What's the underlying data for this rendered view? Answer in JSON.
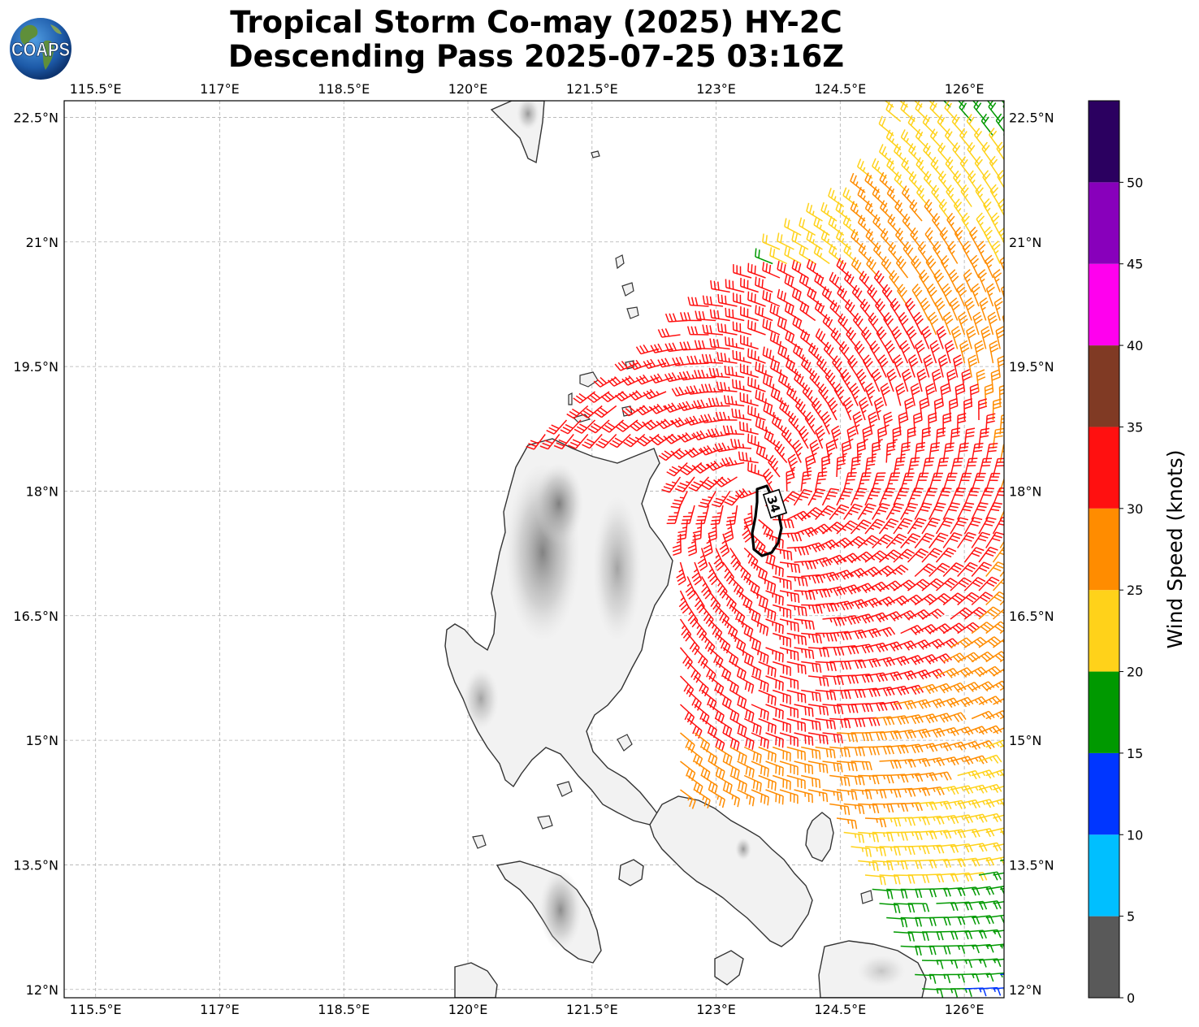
{
  "title_line1": "Tropical Storm Co-may (2025) HY-2C",
  "title_line2": "Descending Pass 2025-07-25 03:16Z",
  "logo_text": "COAPS",
  "lon_labels": [
    "115.5°E",
    "117°E",
    "118.5°E",
    "120°E",
    "121.5°E",
    "123°E",
    "124.5°E",
    "126°E"
  ],
  "lat_labels": [
    "22.5°N",
    "21°N",
    "19.5°N",
    "18°N",
    "16.5°N",
    "15°N",
    "13.5°N",
    "12°N"
  ],
  "lon_values": [
    115.5,
    117,
    118.5,
    120,
    121.5,
    123,
    124.5,
    126
  ],
  "lat_values": [
    22.5,
    21,
    19.5,
    18,
    16.5,
    15,
    13.5,
    12
  ],
  "map_extent": {
    "lon_min": 115.12,
    "lon_max": 126.48,
    "lat_min": 11.9,
    "lat_max": 22.7
  },
  "contour_label": "34",
  "colorbar": {
    "label": "Wind Speed (knots)",
    "tick_labels": [
      "0",
      "5",
      "10",
      "15",
      "20",
      "25",
      "30",
      "35",
      "40",
      "45",
      "50"
    ],
    "bins": [
      {
        "min": 0,
        "max": 5,
        "color": "#595959"
      },
      {
        "min": 5,
        "max": 10,
        "color": "#00bfff"
      },
      {
        "min": 10,
        "max": 15,
        "color": "#0036ff"
      },
      {
        "min": 15,
        "max": 20,
        "color": "#009900"
      },
      {
        "min": 20,
        "max": 25,
        "color": "#ffd21a"
      },
      {
        "min": 25,
        "max": 30,
        "color": "#ff8c00"
      },
      {
        "min": 30,
        "max": 35,
        "color": "#ff1010"
      },
      {
        "min": 35,
        "max": 40,
        "color": "#803a24"
      },
      {
        "min": 40,
        "max": 45,
        "color": "#ff00ee"
      },
      {
        "min": 45,
        "max": 50,
        "color": "#8800bb"
      },
      {
        "min": 50,
        "max": 55,
        "color": "#2b0060"
      }
    ]
  },
  "storm_center": {
    "lon": 123.6,
    "lat": 17.9
  },
  "colors": {
    "coast": "#333333",
    "grid": "#b0b0b0",
    "land": "#f0f0f0",
    "terrain": "#9a9a9a"
  }
}
